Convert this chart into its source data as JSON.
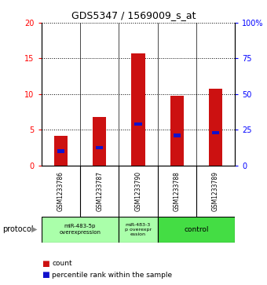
{
  "title": "GDS5347 / 1569009_s_at",
  "samples": [
    "GSM1233786",
    "GSM1233787",
    "GSM1233790",
    "GSM1233788",
    "GSM1233789"
  ],
  "count_values": [
    4.1,
    6.8,
    15.7,
    9.8,
    10.8
  ],
  "percentile_values": [
    10.0,
    12.5,
    29.0,
    21.0,
    23.0
  ],
  "bar_color": "#cc1111",
  "percentile_color": "#1111cc",
  "ylim_left": [
    0,
    20
  ],
  "ylim_right": [
    0,
    100
  ],
  "yticks_left": [
    0,
    5,
    10,
    15,
    20
  ],
  "yticks_right": [
    0,
    25,
    50,
    75,
    100
  ],
  "ytick_labels_right": [
    "0",
    "25",
    "50",
    "75",
    "100%"
  ],
  "legend_count_label": "count",
  "legend_percentile_label": "percentile rank within the sample",
  "protocol_label": "protocol",
  "background_color": "#ffffff",
  "plot_bg_color": "#ffffff",
  "sample_label_bg": "#cccccc",
  "group1_color": "#aaffaa",
  "group2_color": "#aaffaa",
  "group3_color": "#44dd44",
  "group1_label": "miR-483-5p\noverexpression",
  "group2_label": "miR-483-3\np overexpr\nession",
  "group3_label": "control"
}
